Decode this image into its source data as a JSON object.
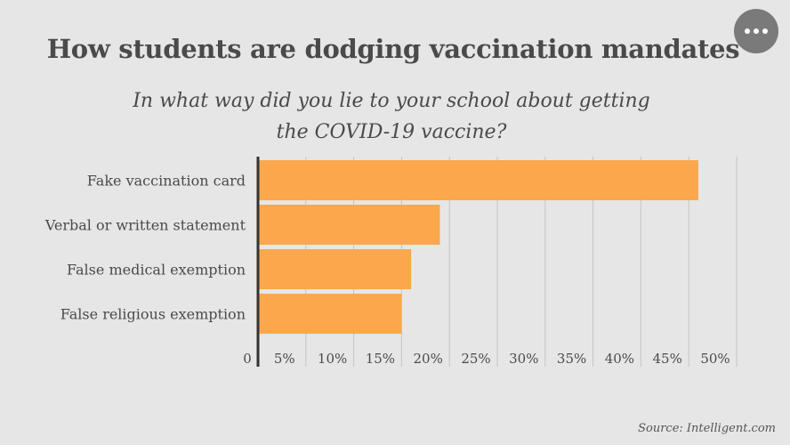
{
  "header": {
    "title": "How students are dodging vaccination mandates",
    "subtitle": "In what way did you lie to your school about getting the COVID-19 vaccine?"
  },
  "menu": {
    "icon": "more-horizontal-icon"
  },
  "source": "Source: Intelligent.com",
  "colors": {
    "bar": "#faa84b",
    "background": "#e6e6e6",
    "grid": "#c4c4c4",
    "axis": "#333333",
    "text": "#4a4a4a"
  },
  "chart_data": {
    "type": "bar",
    "orientation": "horizontal",
    "title": "How students are dodging vaccination mandates",
    "subtitle": "In what way did you lie to your school about getting the COVID-19 vaccine?",
    "categories": [
      "Fake vaccination card",
      "Verbal or written statement",
      "False medical exemption",
      "False religious exemption"
    ],
    "values": [
      46,
      19,
      16,
      15
    ],
    "unit": "%",
    "xlim": [
      0,
      50
    ],
    "xticks": [
      0,
      5,
      10,
      15,
      20,
      25,
      30,
      35,
      40,
      45,
      50
    ],
    "xtick_labels": [
      "0",
      "5%",
      "10%",
      "15%",
      "20%",
      "25%",
      "30%",
      "35%",
      "40%",
      "45%",
      "50%"
    ],
    "grid": true,
    "legend": "none"
  }
}
